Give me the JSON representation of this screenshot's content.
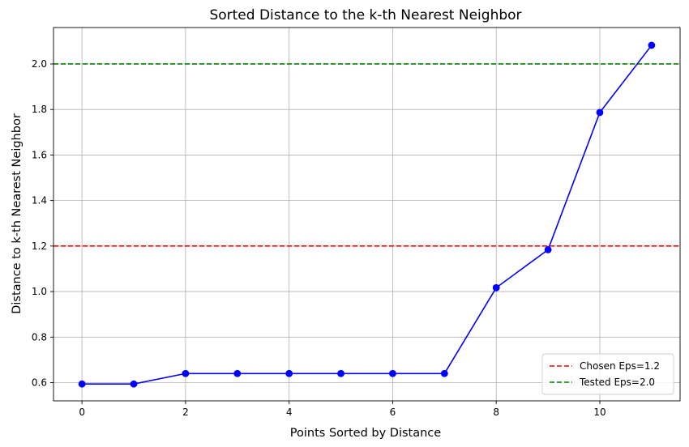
{
  "chart_data": {
    "type": "line",
    "title": "Sorted Distance to the k-th Nearest Neighbor",
    "xlabel": "Points Sorted by Distance",
    "ylabel": "Distance to k-th Nearest Neighbor",
    "xlim": [
      -0.55,
      11.55
    ],
    "ylim": [
      0.52,
      2.16
    ],
    "x_ticks": [
      0,
      2,
      4,
      6,
      8,
      10
    ],
    "y_ticks": [
      0.6,
      0.8,
      1.0,
      1.2,
      1.4,
      1.6,
      1.8,
      2.0
    ],
    "y_tick_labels": [
      "0.6",
      "0.8",
      "1.0",
      "1.2",
      "1.4",
      "1.6",
      "1.8",
      "2.0"
    ],
    "grid": true,
    "legend_placement": "bottom-right",
    "series": [
      {
        "x": [
          0,
          1,
          2,
          3,
          4,
          5,
          6,
          7,
          8,
          9,
          10,
          11
        ],
        "values": [
          0.594,
          0.594,
          0.64,
          0.64,
          0.64,
          0.64,
          0.64,
          0.64,
          1.017,
          1.184,
          1.787,
          2.082
        ],
        "color": "#0000ff",
        "marker": "circle"
      }
    ],
    "hlines": [
      {
        "y": 1.2,
        "label": "Chosen Eps=1.2",
        "color": "#ff0000",
        "style": "dashed"
      },
      {
        "y": 2.0,
        "label": "Tested Eps=2.0",
        "color": "#008000",
        "style": "dashed"
      }
    ]
  }
}
